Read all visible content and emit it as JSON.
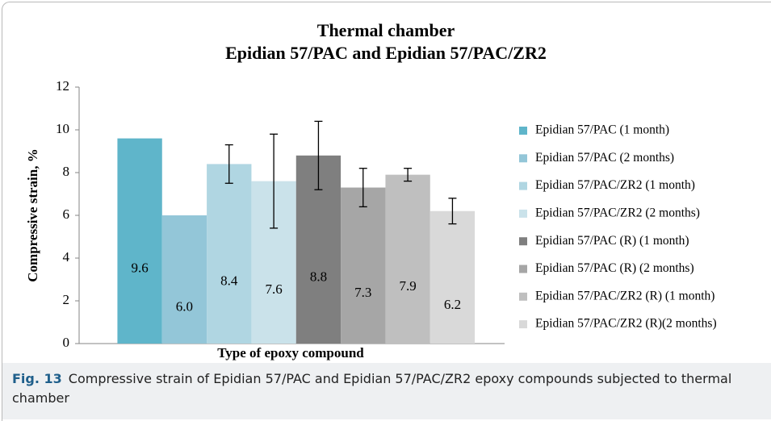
{
  "chart_data": {
    "type": "bar",
    "title": [
      "Thermal chamber",
      "Epidian 57/PAC and Epidian 57/PAC/ZR2"
    ],
    "x_label": "Type of epoxy compound",
    "y_label": "Compressive strain, %",
    "categories": [
      null
    ],
    "ylim": [
      0,
      12
    ],
    "yticks": [
      0,
      2,
      4,
      6,
      8,
      10,
      12
    ],
    "grid": false,
    "legend": "right",
    "series": [
      {
        "name": "Epidian 57/PAC (1 month)",
        "color": "#5fb5ca",
        "values": [
          9.6
        ],
        "errors": [
          null
        ],
        "value_labels": [
          "9.6"
        ]
      },
      {
        "name": "Epidian 57/PAC (2 months)",
        "color": "#93c6d8",
        "values": [
          6.0
        ],
        "errors": [
          null
        ],
        "value_labels": [
          "6.0"
        ]
      },
      {
        "name": "Epidian 57/PAC/ZR2 (1 month)",
        "color": "#b0d6e2",
        "values": [
          8.4
        ],
        "errors": [
          0.9
        ],
        "value_labels": [
          "8.4"
        ]
      },
      {
        "name": "Epidian 57/PAC/ZR2 (2 months)",
        "color": "#cae2ea",
        "values": [
          7.6
        ],
        "errors": [
          2.2
        ],
        "value_labels": [
          "7.6"
        ]
      },
      {
        "name": "Epidian 57/PAC (R) (1 month)",
        "color": "#7f7f7f",
        "values": [
          8.8
        ],
        "errors": [
          1.6
        ],
        "value_labels": [
          "8.8"
        ]
      },
      {
        "name": "Epidian 57/PAC (R) (2 months)",
        "color": "#a6a6a6",
        "values": [
          7.3
        ],
        "errors": [
          0.9
        ],
        "value_labels": [
          "7.3"
        ]
      },
      {
        "name": "Epidian 57/PAC/ZR2 (R) (1 month)",
        "color": "#bfbfbf",
        "values": [
          7.9
        ],
        "errors": [
          0.3
        ],
        "value_labels": [
          "7.9"
        ]
      },
      {
        "name": "Epidian 57/PAC/ZR2 (R)(2 months)",
        "color": "#d9d9d9",
        "values": [
          6.2
        ],
        "errors": [
          0.6
        ],
        "value_labels": [
          "6.2"
        ]
      }
    ]
  },
  "caption": {
    "label": "Fig. 13",
    "text": "Compressive strain of Epidian 57/PAC and Epidian 57/PAC/ZR2 epoxy compounds subjected to thermal chamber"
  }
}
